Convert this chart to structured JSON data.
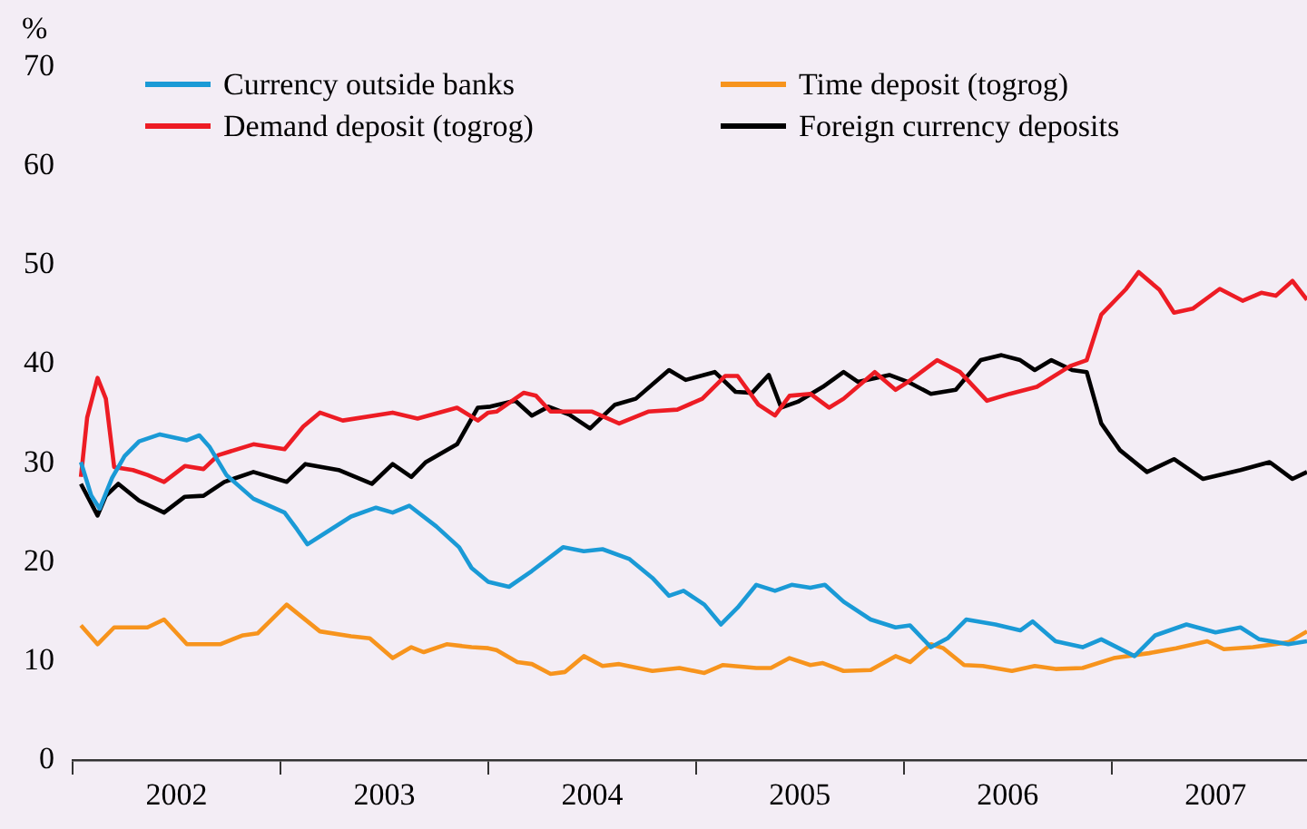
{
  "chart_data": {
    "type": "line",
    "ylabel": "%",
    "legend": "top",
    "grid": false,
    "xlim": [
      2002,
      2007.94
    ],
    "xticks": [
      {
        "value": 2002,
        "label": null
      },
      {
        "value": 2002.5,
        "label": "2002"
      },
      {
        "value": 2003,
        "label": null
      },
      {
        "value": 2003.5,
        "label": "2003"
      },
      {
        "value": 2004,
        "label": null
      },
      {
        "value": 2004.5,
        "label": "2004"
      },
      {
        "value": 2005,
        "label": null
      },
      {
        "value": 2005.5,
        "label": "2005"
      },
      {
        "value": 2006,
        "label": null
      },
      {
        "value": 2006.5,
        "label": "2006"
      },
      {
        "value": 2007,
        "label": null
      },
      {
        "value": 2007.5,
        "label": "2007"
      }
    ],
    "ylim": [
      0,
      70
    ],
    "yticks": [
      0,
      10,
      20,
      30,
      40,
      50,
      60,
      70
    ],
    "series": [
      {
        "name": "Currency outside banks",
        "color": "#1a9ad6",
        "x": [
          2002.04,
          2002.09,
          2002.13,
          2002.19,
          2002.25,
          2002.32,
          2002.42,
          2002.55,
          2002.61,
          2002.66,
          2002.74,
          2002.87,
          2003.02,
          2003.08,
          2003.13,
          2003.22,
          2003.34,
          2003.46,
          2003.54,
          2003.62,
          2003.75,
          2003.86,
          2003.92,
          2004.0,
          2004.1,
          2004.21,
          2004.36,
          2004.46,
          2004.55,
          2004.68,
          2004.79,
          2004.87,
          2004.94,
          2005.04,
          2005.12,
          2005.2,
          2005.29,
          2005.38,
          2005.46,
          2005.55,
          2005.62,
          2005.71,
          2005.84,
          2005.96,
          2006.03,
          2006.13,
          2006.21,
          2006.3,
          2006.44,
          2006.56,
          2006.62,
          2006.73,
          2006.86,
          2006.95,
          2007.11,
          2007.21,
          2007.36,
          2007.5,
          2007.62,
          2007.71,
          2007.85,
          2007.94
        ],
        "values": [
          30.1,
          26.7,
          25.4,
          28.5,
          30.7,
          32.2,
          32.9,
          32.3,
          32.8,
          31.6,
          28.8,
          26.4,
          25.0,
          23.3,
          21.8,
          23.0,
          24.6,
          25.5,
          25.0,
          25.7,
          23.6,
          21.5,
          19.4,
          18.0,
          17.5,
          19.1,
          21.5,
          21.1,
          21.3,
          20.3,
          18.4,
          16.6,
          17.1,
          15.7,
          13.7,
          15.4,
          17.7,
          17.1,
          17.7,
          17.4,
          17.7,
          16.0,
          14.2,
          13.4,
          13.6,
          11.4,
          12.3,
          14.2,
          13.7,
          13.1,
          14.0,
          12.0,
          11.4,
          12.2,
          10.5,
          12.6,
          13.7,
          12.9,
          13.4,
          12.2,
          11.7,
          12.0
        ]
      },
      {
        "name": "Demand deposit (togrog)",
        "color": "#ed1c24",
        "x": [
          2002.04,
          2002.07,
          2002.12,
          2002.16,
          2002.2,
          2002.29,
          2002.36,
          2002.44,
          2002.54,
          2002.63,
          2002.7,
          2002.87,
          2003.02,
          2003.11,
          2003.19,
          2003.3,
          2003.54,
          2003.66,
          2003.85,
          2003.95,
          2004.0,
          2004.04,
          2004.17,
          2004.23,
          2004.3,
          2004.5,
          2004.63,
          2004.77,
          2004.91,
          2005.03,
          2005.14,
          2005.2,
          2005.3,
          2005.38,
          2005.45,
          2005.55,
          2005.64,
          2005.71,
          2005.86,
          2005.96,
          2006.02,
          2006.16,
          2006.27,
          2006.4,
          2006.51,
          2006.64,
          2006.8,
          2006.88,
          2006.95,
          2007.07,
          2007.13,
          2007.23,
          2007.3,
          2007.39,
          2007.52,
          2007.63,
          2007.72,
          2007.79,
          2007.87,
          2007.94
        ],
        "values": [
          28.6,
          34.6,
          38.6,
          36.5,
          29.6,
          29.3,
          28.8,
          28.1,
          29.7,
          29.4,
          30.8,
          31.9,
          31.4,
          33.7,
          35.1,
          34.3,
          35.1,
          34.5,
          35.6,
          34.3,
          35.1,
          35.2,
          37.1,
          36.8,
          35.2,
          35.2,
          34.0,
          35.2,
          35.4,
          36.5,
          38.8,
          38.8,
          35.9,
          34.8,
          36.8,
          37.0,
          35.6,
          36.5,
          39.2,
          37.4,
          38.2,
          40.4,
          39.2,
          36.3,
          37.0,
          37.7,
          39.8,
          40.4,
          45.0,
          47.6,
          49.3,
          47.5,
          45.2,
          45.6,
          47.6,
          46.4,
          47.2,
          46.9,
          48.4,
          46.5
        ]
      },
      {
        "name": "Time deposit (togrog)",
        "color": "#f7941d",
        "x": [
          2002.04,
          2002.12,
          2002.2,
          2002.36,
          2002.44,
          2002.55,
          2002.71,
          2002.82,
          2002.89,
          2003.03,
          2003.19,
          2003.34,
          2003.43,
          2003.54,
          2003.63,
          2003.69,
          2003.8,
          2003.92,
          2004.0,
          2004.04,
          2004.14,
          2004.21,
          2004.3,
          2004.37,
          2004.46,
          2004.55,
          2004.63,
          2004.79,
          2004.92,
          2005.04,
          2005.13,
          2005.29,
          2005.36,
          2005.45,
          2005.55,
          2005.61,
          2005.71,
          2005.84,
          2005.96,
          2006.03,
          2006.13,
          2006.19,
          2006.29,
          2006.38,
          2006.52,
          2006.63,
          2006.73,
          2006.86,
          2007.01,
          2007.18,
          2007.31,
          2007.46,
          2007.54,
          2007.68,
          2007.85,
          2007.94
        ],
        "values": [
          13.6,
          11.7,
          13.4,
          13.4,
          14.2,
          11.7,
          11.7,
          12.6,
          12.8,
          15.7,
          13.0,
          12.5,
          12.3,
          10.3,
          11.4,
          10.9,
          11.7,
          11.4,
          11.3,
          11.1,
          9.9,
          9.7,
          8.7,
          8.9,
          10.5,
          9.5,
          9.7,
          9.0,
          9.3,
          8.8,
          9.6,
          9.3,
          9.3,
          10.3,
          9.6,
          9.8,
          9.0,
          9.1,
          10.5,
          9.9,
          11.7,
          11.3,
          9.6,
          9.5,
          9.0,
          9.5,
          9.2,
          9.3,
          10.3,
          10.8,
          11.3,
          12.0,
          11.2,
          11.4,
          11.9,
          13.0
        ]
      },
      {
        "name": "Foreign currency deposits",
        "color": "#000000",
        "x": [
          2002.04,
          2002.12,
          2002.16,
          2002.22,
          2002.32,
          2002.44,
          2002.54,
          2002.63,
          2002.73,
          2002.87,
          2003.03,
          2003.12,
          2003.28,
          2003.44,
          2003.54,
          2003.63,
          2003.7,
          2003.85,
          2003.95,
          2004.01,
          2004.13,
          2004.21,
          2004.29,
          2004.39,
          2004.49,
          2004.61,
          2004.71,
          2004.87,
          2004.95,
          2005.09,
          2005.19,
          2005.27,
          2005.35,
          2005.41,
          2005.49,
          2005.61,
          2005.71,
          2005.78,
          2005.93,
          2006.02,
          2006.13,
          2006.25,
          2006.37,
          2006.47,
          2006.56,
          2006.63,
          2006.71,
          2006.81,
          2006.88,
          2006.95,
          2007.04,
          2007.17,
          2007.3,
          2007.44,
          2007.62,
          2007.76,
          2007.87,
          2007.94
        ],
        "values": [
          27.9,
          24.7,
          26.7,
          27.9,
          26.2,
          25.0,
          26.6,
          26.7,
          28.1,
          29.1,
          28.1,
          29.9,
          29.3,
          27.9,
          29.9,
          28.6,
          30.1,
          31.9,
          35.6,
          35.7,
          36.3,
          34.8,
          35.7,
          34.9,
          33.5,
          35.9,
          36.5,
          39.4,
          38.4,
          39.2,
          37.2,
          37.1,
          38.9,
          35.6,
          36.2,
          37.7,
          39.2,
          38.2,
          38.9,
          38.2,
          37.0,
          37.4,
          40.4,
          40.9,
          40.4,
          39.4,
          40.4,
          39.4,
          39.2,
          34.0,
          31.3,
          29.1,
          30.4,
          28.4,
          29.3,
          30.1,
          28.4,
          29.1
        ]
      }
    ]
  }
}
